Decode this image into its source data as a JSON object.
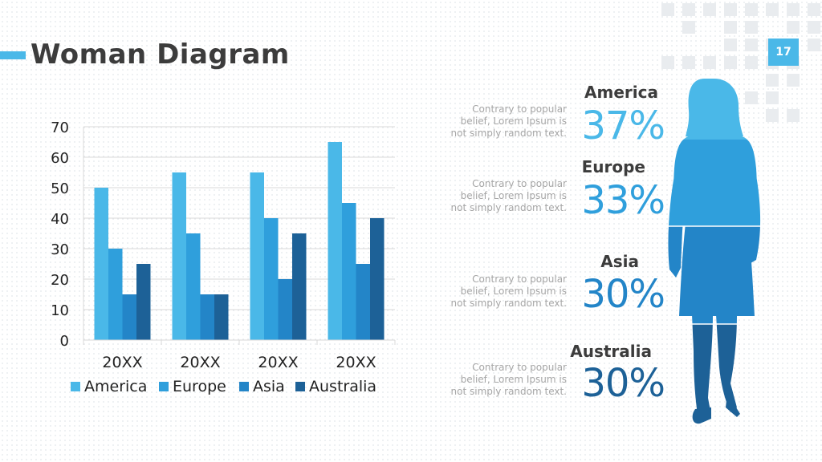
{
  "slide": {
    "title": "Woman Diagram",
    "page_number": "17",
    "accent_color": "#4ab8e8"
  },
  "stats": [
    {
      "region": "America",
      "percent": "37%",
      "description": "Contrary to popular belief, Lorem Ipsum is not simply random text.",
      "color": "#4ab8e8"
    },
    {
      "region": "Europe",
      "percent": "33%",
      "description": "Contrary to popular belief, Lorem Ipsum is not simply random text.",
      "color": "#2f9fdc"
    },
    {
      "region": "Asia",
      "percent": "30%",
      "description": "Contrary to popular belief, Lorem Ipsum is not simply random text.",
      "color": "#2385c8"
    },
    {
      "region": "Australia",
      "percent": "30%",
      "description": "Contrary to popular belief, Lorem Ipsum is not simply random text.",
      "color": "#1d6197"
    }
  ],
  "figure": {
    "icon": "woman-silhouette-icon"
  },
  "chart_data": {
    "type": "bar",
    "categories": [
      "20XX",
      "20XX",
      "20XX",
      "20XX"
    ],
    "series": [
      {
        "name": "America",
        "values": [
          50,
          55,
          55,
          65
        ],
        "color": "#4ab8e8"
      },
      {
        "name": "Europe",
        "values": [
          30,
          35,
          40,
          45
        ],
        "color": "#2f9fdc"
      },
      {
        "name": "Asia",
        "values": [
          15,
          15,
          20,
          25
        ],
        "color": "#2385c8"
      },
      {
        "name": "Australia",
        "values": [
          25,
          15,
          35,
          40
        ],
        "color": "#1d6197"
      }
    ],
    "yticks": [
      "0",
      "10",
      "20",
      "30",
      "40",
      "50",
      "60",
      "70"
    ],
    "ylim": [
      0,
      70
    ],
    "grid": true,
    "legend": "bottom"
  }
}
